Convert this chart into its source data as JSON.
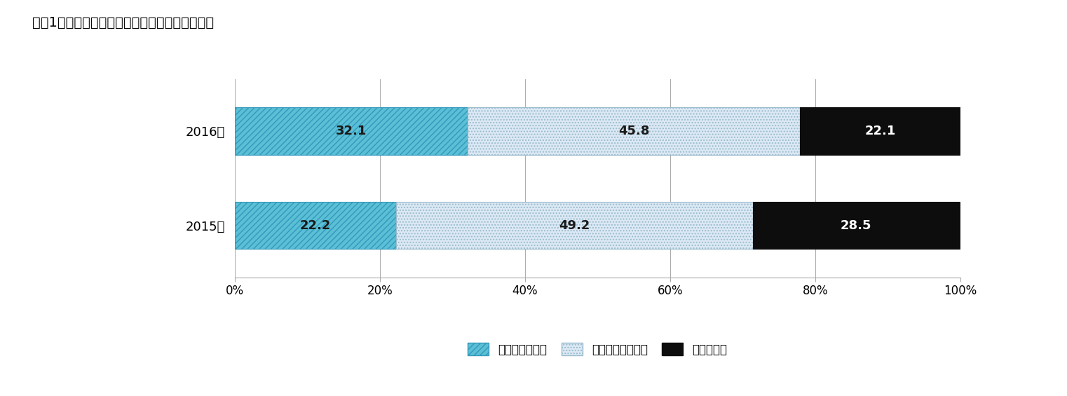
{
  "title": "図表1：働き方変革に取り組んでいる企業の割合",
  "years": [
    "2016年",
    "2015年"
  ],
  "values": {
    "taking": [
      32.1,
      22.2
    ],
    "not_taking": [
      45.8,
      49.2
    ],
    "unknown": [
      22.1,
      28.5
    ]
  },
  "bar_colors": {
    "taking": "#5bbfd6",
    "not_taking": "#dce9f5",
    "unknown": "#0d0d0d"
  },
  "hatch_taking": "////",
  "hatch_not_taking": "....",
  "legend_labels": [
    "取り組んでいる",
    "取り組んでいない",
    "わからない"
  ],
  "title_fontsize": 14,
  "label_fontsize": 13,
  "tick_fontsize": 12,
  "legend_fontsize": 12,
  "bar_height": 0.5,
  "xlim": [
    0,
    100
  ],
  "xticks": [
    0,
    20,
    40,
    60,
    80,
    100
  ],
  "xtick_labels": [
    "0%",
    "20%",
    "40%",
    "60%",
    "80%",
    "100%"
  ],
  "background_color": "#ffffff",
  "grid_color": "#aaaaaa",
  "value_text_color_dark": "#1a1a1a",
  "value_text_color_light": "#ffffff"
}
